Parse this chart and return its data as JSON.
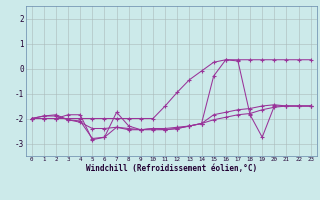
{
  "xlabel": "Windchill (Refroidissement éolien,°C)",
  "x_hours": [
    0,
    1,
    2,
    3,
    4,
    5,
    6,
    7,
    8,
    9,
    10,
    11,
    12,
    13,
    14,
    15,
    16,
    17,
    18,
    19,
    20,
    21,
    22,
    23
  ],
  "line_zigzag": [
    -2.0,
    -1.9,
    -1.85,
    -2.05,
    -2.1,
    -2.8,
    -2.75,
    -2.35,
    -2.4,
    -2.45,
    -2.4,
    -2.4,
    -2.35,
    -2.3,
    -2.2,
    -1.85,
    -1.75,
    -1.65,
    -1.6,
    -1.5,
    -1.45,
    -1.5,
    -1.5,
    -1.5
  ],
  "line_diagonal": [
    -2.0,
    -2.0,
    -2.0,
    -2.0,
    -2.0,
    -2.0,
    -2.0,
    -2.0,
    -2.0,
    -2.0,
    -2.0,
    -1.5,
    -0.95,
    -0.45,
    -0.1,
    0.25,
    0.35,
    0.35,
    0.35,
    0.35,
    0.35,
    0.35,
    0.35,
    0.35
  ],
  "line_spike": [
    -2.0,
    -1.9,
    -1.9,
    -2.05,
    -2.15,
    -2.4,
    -2.4,
    -2.35,
    -2.45,
    -2.45,
    -2.45,
    -2.45,
    -2.4,
    -2.3,
    -2.2,
    -2.05,
    -1.95,
    -1.85,
    -1.8,
    -1.65,
    -1.55,
    -1.5,
    -1.5,
    -1.5
  ],
  "line_main": [
    -2.0,
    -2.0,
    -2.0,
    -1.85,
    -1.85,
    -2.85,
    -2.75,
    -1.75,
    -2.3,
    -2.45,
    -2.4,
    -2.45,
    -2.4,
    -2.3,
    -2.2,
    -0.3,
    0.35,
    0.3,
    -1.85,
    -2.75,
    -1.5,
    -1.5,
    -1.5,
    -1.5
  ],
  "color": "#993399",
  "bg_color": "#cceaea",
  "ylim": [
    -3.5,
    2.5
  ],
  "yticks": [
    -3,
    -2,
    -1,
    0,
    1,
    2
  ],
  "xticks": [
    0,
    1,
    2,
    3,
    4,
    5,
    6,
    7,
    8,
    9,
    10,
    11,
    12,
    13,
    14,
    15,
    16,
    17,
    18,
    19,
    20,
    21,
    22,
    23
  ]
}
